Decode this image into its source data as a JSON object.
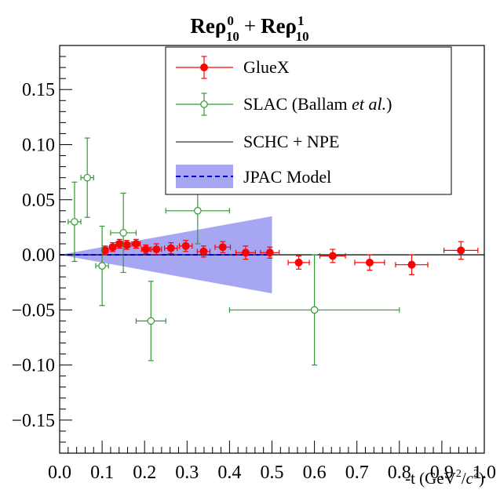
{
  "chart_data": {
    "type": "scatter",
    "title": {
      "part1_base": "Reρ",
      "part1_sup": "0",
      "part1_sub": "10",
      "plus": "+",
      "part2_base": "Reρ",
      "part2_sup": "1",
      "part2_sub": "10"
    },
    "xlabel": {
      "prefix": "-t (GeV",
      "sup1": "2",
      "mid": "/",
      "italic": "c",
      "sup2": "2",
      "suffix": ")"
    },
    "ylabel": "",
    "xlim": [
      0.0,
      1.0
    ],
    "ylim": [
      -0.18,
      0.19
    ],
    "x_ticks": [
      {
        "value": 0.0,
        "label": "0.0"
      },
      {
        "value": 0.1,
        "label": "0.1"
      },
      {
        "value": 0.2,
        "label": "0.2"
      },
      {
        "value": 0.3,
        "label": "0.3"
      },
      {
        "value": 0.4,
        "label": "0.4"
      },
      {
        "value": 0.5,
        "label": "0.5"
      },
      {
        "value": 0.6,
        "label": "0.6"
      },
      {
        "value": 0.7,
        "label": "0.7"
      },
      {
        "value": 0.8,
        "label": "0.8"
      },
      {
        "value": 0.9,
        "label": "0.9"
      },
      {
        "value": 1.0,
        "label": "1.0"
      }
    ],
    "y_ticks": [
      {
        "value": 0.15,
        "label": "0.15"
      },
      {
        "value": 0.1,
        "label": "0.10"
      },
      {
        "value": 0.05,
        "label": "0.05"
      },
      {
        "value": 0.0,
        "label": "0.00"
      },
      {
        "value": -0.05,
        "label": "−0.05"
      },
      {
        "value": -0.1,
        "label": "−0.10"
      },
      {
        "value": -0.15,
        "label": "−0.15"
      }
    ],
    "legend": {
      "position": "top-right",
      "entries": [
        {
          "key": "gluex",
          "label": "GlueX"
        },
        {
          "key": "slac",
          "label_main": "SLAC (Ballam ",
          "label_italic": "et al.",
          "label_end": ")"
        },
        {
          "key": "schc",
          "label": "SCHC + NPE"
        },
        {
          "key": "jpac",
          "label": "JPAC Model"
        }
      ]
    },
    "colors": {
      "gluex": "#ff0000",
      "slac": "#339933",
      "schc": "#000000",
      "jpac_band": "#a6a6f2",
      "jpac_line": "#0000dd"
    },
    "series": [
      {
        "key": "gluex",
        "marker": "filled-circle",
        "points": [
          {
            "x": 0.107,
            "y": 0.004,
            "xerr": 0.007,
            "yerr": 0.004
          },
          {
            "x": 0.125,
            "y": 0.007,
            "xerr": 0.007,
            "yerr": 0.004
          },
          {
            "x": 0.141,
            "y": 0.01,
            "xerr": 0.008,
            "yerr": 0.004
          },
          {
            "x": 0.158,
            "y": 0.009,
            "xerr": 0.008,
            "yerr": 0.004
          },
          {
            "x": 0.18,
            "y": 0.01,
            "xerr": 0.01,
            "yerr": 0.004
          },
          {
            "x": 0.203,
            "y": 0.005,
            "xerr": 0.01,
            "yerr": 0.004
          },
          {
            "x": 0.228,
            "y": 0.005,
            "xerr": 0.012,
            "yerr": 0.005
          },
          {
            "x": 0.262,
            "y": 0.006,
            "xerr": 0.015,
            "yerr": 0.005
          },
          {
            "x": 0.297,
            "y": 0.008,
            "xerr": 0.015,
            "yerr": 0.005
          },
          {
            "x": 0.339,
            "y": 0.003,
            "xerr": 0.015,
            "yerr": 0.005
          },
          {
            "x": 0.384,
            "y": 0.007,
            "xerr": 0.018,
            "yerr": 0.005
          },
          {
            "x": 0.438,
            "y": 0.002,
            "xerr": 0.023,
            "yerr": 0.006
          },
          {
            "x": 0.495,
            "y": 0.002,
            "xerr": 0.022,
            "yerr": 0.005
          },
          {
            "x": 0.563,
            "y": -0.007,
            "xerr": 0.025,
            "yerr": 0.006
          },
          {
            "x": 0.643,
            "y": -0.001,
            "xerr": 0.03,
            "yerr": 0.006
          },
          {
            "x": 0.73,
            "y": -0.007,
            "xerr": 0.035,
            "yerr": 0.007
          },
          {
            "x": 0.829,
            "y": -0.009,
            "xerr": 0.038,
            "yerr": 0.009
          },
          {
            "x": 0.945,
            "y": 0.004,
            "xerr": 0.04,
            "yerr": 0.008
          }
        ]
      },
      {
        "key": "slac",
        "marker": "open-circle",
        "points": [
          {
            "x": 0.035,
            "y": 0.03,
            "xerr": 0.015,
            "yerr": 0.036
          },
          {
            "x": 0.065,
            "y": 0.07,
            "xerr": 0.015,
            "yerr": 0.036
          },
          {
            "x": 0.1,
            "y": -0.01,
            "xerr": 0.015,
            "yerr": 0.036
          },
          {
            "x": 0.15,
            "y": 0.02,
            "xerr": 0.03,
            "yerr": 0.036
          },
          {
            "x": 0.215,
            "y": -0.06,
            "xerr": 0.035,
            "yerr": 0.036
          },
          {
            "x": 0.325,
            "y": 0.04,
            "xerr": 0.075,
            "yerr": 0.03
          },
          {
            "x": 0.6,
            "y": -0.05,
            "xerr": 0.2,
            "yerr": 0.05
          }
        ]
      }
    ],
    "schc_line": {
      "y": 0.0,
      "x_range": [
        0.0,
        1.0
      ]
    },
    "jpac_model": {
      "x_range": [
        0.0,
        0.5
      ],
      "line_y": [
        0.0,
        0.0
      ],
      "band_upper": [
        0.0,
        0.035
      ],
      "band_lower": [
        0.0,
        -0.035
      ]
    }
  }
}
